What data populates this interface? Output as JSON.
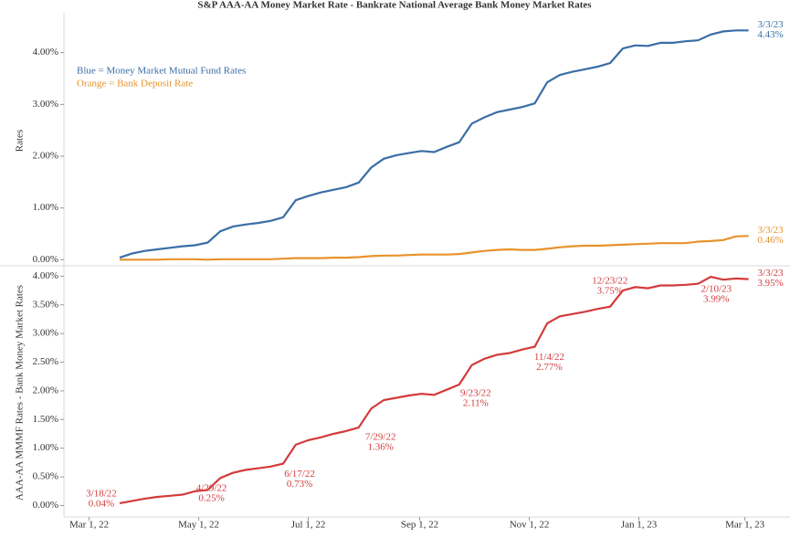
{
  "chart_data": [
    {
      "type": "line",
      "title": "S&P AAA-AA Money Market Rate - Bankrate National Average Bank Money Market Rates",
      "y_label": "Rates",
      "notes": [
        {
          "text": "Blue = Money Market Mutual Fund Rates",
          "color": "#3a6ea5"
        },
        {
          "text": "Orange = Bank Deposit Rate",
          "color": "#e8922b"
        }
      ],
      "x": [
        "2022-03-18",
        "2022-03-25",
        "2022-04-01",
        "2022-04-08",
        "2022-04-15",
        "2022-04-22",
        "2022-04-29",
        "2022-05-06",
        "2022-05-13",
        "2022-05-20",
        "2022-05-27",
        "2022-06-03",
        "2022-06-10",
        "2022-06-17",
        "2022-06-24",
        "2022-07-01",
        "2022-07-08",
        "2022-07-15",
        "2022-07-22",
        "2022-07-29",
        "2022-08-05",
        "2022-08-12",
        "2022-08-19",
        "2022-08-26",
        "2022-09-02",
        "2022-09-09",
        "2022-09-16",
        "2022-09-23",
        "2022-09-30",
        "2022-10-07",
        "2022-10-14",
        "2022-10-21",
        "2022-10-28",
        "2022-11-04",
        "2022-11-11",
        "2022-11-18",
        "2022-11-25",
        "2022-12-02",
        "2022-12-09",
        "2022-12-16",
        "2022-12-23",
        "2022-12-30",
        "2023-01-06",
        "2023-01-13",
        "2023-01-20",
        "2023-01-27",
        "2023-02-03",
        "2023-02-10",
        "2023-02-17",
        "2023-02-24",
        "2023-03-03"
      ],
      "xlim": [
        "2022-02-15",
        "2023-03-21"
      ],
      "ylim": [
        -0.1,
        4.7
      ],
      "yticks": [
        {
          "value": 0,
          "label": "0.00%"
        },
        {
          "value": 1,
          "label": "1.00%"
        },
        {
          "value": 2,
          "label": "2.00%"
        },
        {
          "value": 3,
          "label": "3.00%"
        },
        {
          "value": 4,
          "label": "4.00%"
        }
      ],
      "series": [
        {
          "name": "Money Market Mutual Fund Rates",
          "color": "#3a6ea5",
          "values": [
            0.04,
            0.12,
            0.17,
            0.2,
            0.23,
            0.26,
            0.28,
            0.33,
            0.55,
            0.64,
            0.68,
            0.71,
            0.75,
            0.82,
            1.15,
            1.23,
            1.3,
            1.35,
            1.4,
            1.49,
            1.78,
            1.95,
            2.02,
            2.06,
            2.1,
            2.08,
            2.18,
            2.27,
            2.63,
            2.75,
            2.85,
            2.9,
            2.95,
            3.02,
            3.43,
            3.57,
            3.63,
            3.68,
            3.73,
            3.8,
            4.08,
            4.14,
            4.13,
            4.19,
            4.19,
            4.22,
            4.24,
            4.35,
            4.41,
            4.43,
            4.43
          ],
          "date_labels": [
            null,
            null,
            null,
            null,
            null,
            null,
            null,
            null,
            null,
            null,
            null,
            null,
            null,
            null,
            null,
            null,
            null,
            null,
            null,
            null,
            null,
            null,
            null,
            null,
            null,
            null,
            null,
            null,
            null,
            null,
            null,
            null,
            null,
            null,
            null,
            null,
            null,
            null,
            null,
            null,
            null,
            null,
            null,
            null,
            null,
            null,
            null,
            null,
            null,
            null,
            "3/3/23"
          ],
          "value_labels": [
            null,
            null,
            null,
            null,
            null,
            null,
            null,
            null,
            null,
            null,
            null,
            null,
            null,
            null,
            null,
            null,
            null,
            null,
            null,
            null,
            null,
            null,
            null,
            null,
            null,
            null,
            null,
            null,
            null,
            null,
            null,
            null,
            null,
            null,
            null,
            null,
            null,
            null,
            null,
            null,
            null,
            null,
            null,
            null,
            null,
            null,
            null,
            null,
            null,
            null,
            "4.43%"
          ]
        },
        {
          "name": "Bank Deposit Rate",
          "color": "#e8922b",
          "values": [
            0,
            0,
            0,
            0,
            0.01,
            0.01,
            0.01,
            0,
            0.01,
            0.01,
            0.01,
            0.01,
            0.01,
            0.02,
            0.03,
            0.03,
            0.03,
            0.04,
            0.04,
            0.05,
            0.07,
            0.08,
            0.08,
            0.09,
            0.1,
            0.1,
            0.1,
            0.11,
            0.14,
            0.17,
            0.19,
            0.2,
            0.19,
            0.19,
            0.21,
            0.24,
            0.26,
            0.27,
            0.27,
            0.28,
            0.29,
            0.3,
            0.31,
            0.32,
            0.32,
            0.32,
            0.35,
            0.36,
            0.38,
            0.45,
            0.46
          ],
          "date_labels": [
            null,
            null,
            null,
            null,
            null,
            null,
            null,
            null,
            null,
            null,
            null,
            null,
            null,
            null,
            null,
            null,
            null,
            null,
            null,
            null,
            null,
            null,
            null,
            null,
            null,
            null,
            null,
            null,
            null,
            null,
            null,
            null,
            null,
            null,
            null,
            null,
            null,
            null,
            null,
            null,
            null,
            null,
            null,
            null,
            null,
            null,
            null,
            null,
            null,
            null,
            "3/3/23"
          ],
          "value_labels": [
            null,
            null,
            null,
            null,
            null,
            null,
            null,
            null,
            null,
            null,
            null,
            null,
            null,
            null,
            null,
            null,
            null,
            null,
            null,
            null,
            null,
            null,
            null,
            null,
            null,
            null,
            null,
            null,
            null,
            null,
            null,
            null,
            null,
            null,
            null,
            null,
            null,
            null,
            null,
            null,
            null,
            null,
            null,
            null,
            null,
            null,
            null,
            null,
            null,
            null,
            "0.46%"
          ]
        }
      ]
    },
    {
      "type": "line",
      "y_label": "AAA-AA MMMF Rates - Bank Money Market Rates",
      "x": [
        "2022-03-18",
        "2022-03-25",
        "2022-04-01",
        "2022-04-08",
        "2022-04-15",
        "2022-04-22",
        "2022-04-29",
        "2022-05-06",
        "2022-05-13",
        "2022-05-20",
        "2022-05-27",
        "2022-06-03",
        "2022-06-10",
        "2022-06-17",
        "2022-06-24",
        "2022-07-01",
        "2022-07-08",
        "2022-07-15",
        "2022-07-22",
        "2022-07-29",
        "2022-08-05",
        "2022-08-12",
        "2022-08-19",
        "2022-08-26",
        "2022-09-02",
        "2022-09-09",
        "2022-09-16",
        "2022-09-23",
        "2022-09-30",
        "2022-10-07",
        "2022-10-14",
        "2022-10-21",
        "2022-10-28",
        "2022-11-04",
        "2022-11-11",
        "2022-11-18",
        "2022-11-25",
        "2022-12-02",
        "2022-12-09",
        "2022-12-16",
        "2022-12-23",
        "2022-12-30",
        "2023-01-06",
        "2023-01-13",
        "2023-01-20",
        "2023-01-27",
        "2023-02-03",
        "2023-02-10",
        "2023-02-17",
        "2023-02-24",
        "2023-03-03"
      ],
      "xlim": [
        "2022-02-15",
        "2023-03-21"
      ],
      "xticks": [
        {
          "value": "2022-03-01",
          "label": "Mar 1, 22"
        },
        {
          "value": "2022-05-01",
          "label": "May 1, 22"
        },
        {
          "value": "2022-07-01",
          "label": "Jul 1, 22"
        },
        {
          "value": "2022-09-01",
          "label": "Sep 1, 22"
        },
        {
          "value": "2022-11-01",
          "label": "Nov 1, 22"
        },
        {
          "value": "2023-01-01",
          "label": "Jan 1, 23"
        },
        {
          "value": "2023-03-01",
          "label": "Mar 1, 23"
        }
      ],
      "ylim": [
        -0.2,
        4.15
      ],
      "yticks": [
        {
          "value": 0,
          "label": "0.00%"
        },
        {
          "value": 0.5,
          "label": "0.50%"
        },
        {
          "value": 1,
          "label": "1.00%"
        },
        {
          "value": 1.5,
          "label": "1.50%"
        },
        {
          "value": 2,
          "label": "2.00%"
        },
        {
          "value": 2.5,
          "label": "2.50%"
        },
        {
          "value": 3,
          "label": "3.00%"
        },
        {
          "value": 3.5,
          "label": "3.50%"
        },
        {
          "value": 4,
          "label": "4.00%"
        }
      ],
      "series": [
        {
          "name": "MMMF Rates - Bank Money Market Rates",
          "color": "#d33b3b",
          "values": [
            0.04,
            0.08,
            0.12,
            0.15,
            0.17,
            0.19,
            0.25,
            0.27,
            0.48,
            0.57,
            0.62,
            0.65,
            0.68,
            0.73,
            1.06,
            1.14,
            1.19,
            1.25,
            1.3,
            1.36,
            1.69,
            1.84,
            1.88,
            1.92,
            1.95,
            1.93,
            2.02,
            2.11,
            2.45,
            2.56,
            2.63,
            2.66,
            2.72,
            2.77,
            3.18,
            3.3,
            3.34,
            3.38,
            3.43,
            3.47,
            3.75,
            3.81,
            3.79,
            3.84,
            3.84,
            3.85,
            3.87,
            3.99,
            3.94,
            3.96,
            3.95
          ],
          "date_labels": [
            "3/18/22",
            null,
            null,
            null,
            null,
            null,
            "4/29/22",
            null,
            null,
            null,
            null,
            null,
            null,
            "6/17/22",
            null,
            null,
            null,
            null,
            null,
            "7/29/22",
            null,
            null,
            null,
            null,
            null,
            null,
            null,
            "9/23/22",
            null,
            null,
            null,
            null,
            null,
            "11/4/22",
            null,
            null,
            null,
            null,
            null,
            null,
            "12/23/22",
            null,
            null,
            null,
            null,
            null,
            null,
            "2/10/23",
            null,
            null,
            "3/3/23"
          ],
          "value_labels": [
            "0.04%",
            null,
            null,
            null,
            null,
            null,
            "0.25%",
            null,
            null,
            null,
            null,
            null,
            null,
            "0.73%",
            null,
            null,
            null,
            null,
            null,
            "1.36%",
            null,
            null,
            null,
            null,
            null,
            null,
            null,
            "2.11%",
            null,
            null,
            null,
            null,
            null,
            "2.77%",
            null,
            null,
            null,
            null,
            null,
            null,
            "3.75%",
            null,
            null,
            null,
            null,
            null,
            null,
            "3.99%",
            null,
            null,
            "3.95%"
          ]
        }
      ]
    }
  ]
}
